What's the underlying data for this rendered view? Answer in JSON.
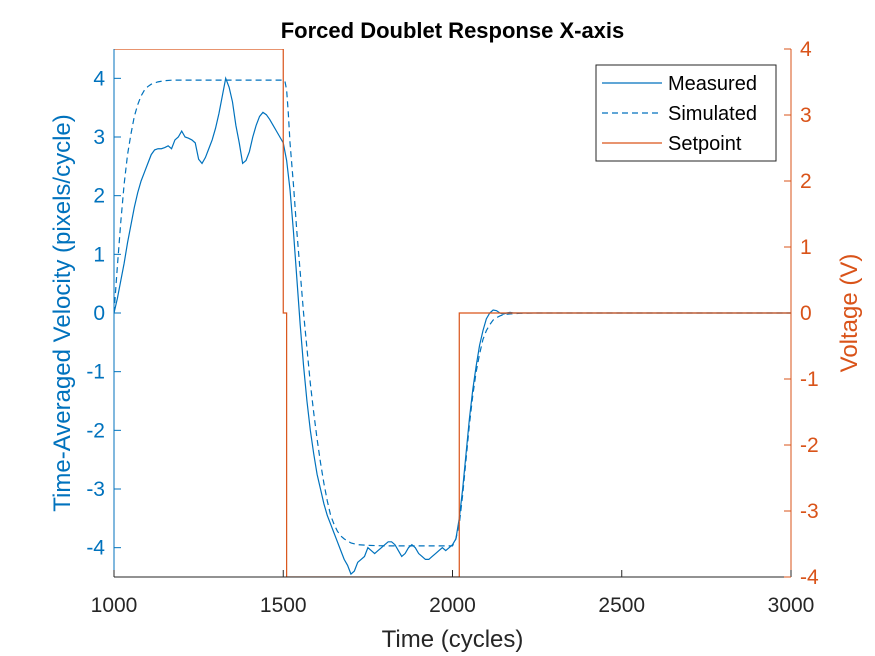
{
  "chart_data": {
    "type": "line",
    "title": "Forced Doublet Response X-axis",
    "xlabel": "Time (cycles)",
    "ylabel_left": "Time-Averaged Velocity (pixels/cycle)",
    "ylabel_right": "Voltage (V)",
    "xlim": [
      1000,
      3000
    ],
    "ylim_left": [
      -4.5,
      4.5
    ],
    "ylim_right": [
      -4,
      4
    ],
    "x_ticks": [
      1000,
      1500,
      2000,
      2500,
      3000
    ],
    "y_ticks_left": [
      -4,
      -3,
      -2,
      -1,
      0,
      1,
      2,
      3,
      4
    ],
    "y_ticks_right": [
      -4,
      -3,
      -2,
      -1,
      0,
      1,
      2,
      3,
      4
    ],
    "grid": false,
    "legend": "top-right",
    "colors": {
      "left_axis": "#0072BD",
      "right_axis": "#D95319"
    },
    "series": [
      {
        "name": "Measured",
        "axis": "left",
        "style": "solid",
        "color": "#0072BD",
        "x": [
          1000,
          1010,
          1020,
          1030,
          1040,
          1050,
          1060,
          1070,
          1080,
          1090,
          1100,
          1110,
          1120,
          1130,
          1140,
          1150,
          1160,
          1170,
          1180,
          1190,
          1200,
          1210,
          1220,
          1230,
          1240,
          1250,
          1260,
          1270,
          1280,
          1290,
          1300,
          1310,
          1320,
          1330,
          1340,
          1350,
          1360,
          1370,
          1380,
          1390,
          1400,
          1410,
          1420,
          1430,
          1440,
          1450,
          1460,
          1470,
          1480,
          1490,
          1500,
          1510,
          1520,
          1530,
          1540,
          1550,
          1560,
          1570,
          1580,
          1590,
          1600,
          1610,
          1620,
          1630,
          1640,
          1650,
          1660,
          1670,
          1680,
          1690,
          1700,
          1710,
          1720,
          1730,
          1740,
          1750,
          1760,
          1770,
          1780,
          1790,
          1800,
          1810,
          1820,
          1830,
          1840,
          1850,
          1860,
          1870,
          1880,
          1890,
          1900,
          1910,
          1920,
          1930,
          1940,
          1950,
          1960,
          1970,
          1980,
          1990,
          2000,
          2010,
          2020,
          2030,
          2040,
          2050,
          2060,
          2070,
          2080,
          2090,
          2100,
          2110,
          2120,
          2130,
          2140,
          2150,
          2160,
          2170,
          2180,
          2200,
          2250,
          2300,
          2400,
          2600,
          2800,
          3000
        ],
        "y": [
          0.0,
          0.25,
          0.55,
          0.85,
          1.2,
          1.5,
          1.8,
          2.05,
          2.25,
          2.4,
          2.55,
          2.7,
          2.78,
          2.8,
          2.8,
          2.82,
          2.85,
          2.8,
          2.95,
          3.0,
          3.1,
          3.0,
          2.98,
          2.95,
          2.9,
          2.62,
          2.55,
          2.65,
          2.8,
          2.95,
          3.15,
          3.4,
          3.7,
          4.0,
          3.85,
          3.6,
          3.2,
          2.9,
          2.55,
          2.6,
          2.75,
          3.0,
          3.2,
          3.35,
          3.42,
          3.38,
          3.3,
          3.2,
          3.1,
          3.0,
          2.9,
          2.6,
          2.1,
          1.4,
          0.6,
          -0.2,
          -0.9,
          -1.5,
          -2.0,
          -2.4,
          -2.75,
          -3.0,
          -3.25,
          -3.45,
          -3.6,
          -3.75,
          -3.9,
          -4.05,
          -4.2,
          -4.3,
          -4.45,
          -4.4,
          -4.25,
          -4.2,
          -4.15,
          -4.0,
          -4.05,
          -4.1,
          -4.05,
          -4.0,
          -3.95,
          -3.9,
          -3.9,
          -3.95,
          -4.05,
          -4.15,
          -4.1,
          -4.0,
          -3.95,
          -4.0,
          -4.1,
          -4.15,
          -4.2,
          -4.2,
          -4.15,
          -4.1,
          -4.05,
          -4.0,
          -4.05,
          -4.0,
          -3.95,
          -3.85,
          -3.5,
          -3.0,
          -2.4,
          -1.8,
          -1.3,
          -0.9,
          -0.55,
          -0.3,
          -0.1,
          0.0,
          0.05,
          0.04,
          0.0,
          -0.02,
          0.0,
          0.01,
          0.0,
          0.0,
          0.0,
          0.0,
          0.0,
          0.0,
          0.0,
          0.0
        ]
      },
      {
        "name": "Simulated",
        "axis": "left",
        "style": "dashed",
        "color": "#0072BD",
        "x": [
          1000,
          1010,
          1020,
          1030,
          1040,
          1050,
          1060,
          1070,
          1080,
          1090,
          1100,
          1110,
          1120,
          1130,
          1140,
          1150,
          1175,
          1200,
          1300,
          1400,
          1480,
          1500,
          1505,
          1510,
          1515,
          1520,
          1530,
          1540,
          1550,
          1560,
          1570,
          1580,
          1590,
          1600,
          1610,
          1620,
          1630,
          1640,
          1650,
          1660,
          1670,
          1680,
          1700,
          1720,
          1750,
          1800,
          1900,
          2000,
          2010,
          2020,
          2030,
          2040,
          2050,
          2060,
          2070,
          2080,
          2090,
          2100,
          2110,
          2120,
          2130,
          2140,
          2150,
          2170,
          2200,
          2250,
          2400,
          2600,
          3000
        ],
        "y": [
          0.0,
          0.8,
          1.55,
          2.2,
          2.7,
          3.05,
          3.35,
          3.55,
          3.7,
          3.8,
          3.86,
          3.9,
          3.92,
          3.94,
          3.95,
          3.96,
          3.97,
          3.97,
          3.97,
          3.97,
          3.97,
          3.97,
          3.95,
          3.8,
          3.4,
          2.9,
          2.2,
          1.4,
          0.7,
          0.0,
          -0.6,
          -1.2,
          -1.7,
          -2.15,
          -2.55,
          -2.9,
          -3.2,
          -3.45,
          -3.6,
          -3.72,
          -3.8,
          -3.85,
          -3.92,
          -3.95,
          -3.96,
          -3.97,
          -3.97,
          -3.97,
          -3.85,
          -3.6,
          -3.1,
          -2.5,
          -1.9,
          -1.4,
          -1.0,
          -0.7,
          -0.45,
          -0.3,
          -0.2,
          -0.12,
          -0.08,
          -0.05,
          -0.03,
          -0.015,
          -0.005,
          0.0,
          0.0,
          0.0,
          0.0
        ]
      },
      {
        "name": "Setpoint",
        "axis": "right",
        "style": "solid",
        "color": "#D95319",
        "x": [
          1000,
          1500,
          1500,
          1510,
          1510,
          2010,
          2010,
          2020,
          2020,
          3000
        ],
        "y": [
          4,
          4,
          0,
          0,
          -4,
          -4,
          -4,
          -4,
          0,
          0
        ]
      }
    ]
  }
}
